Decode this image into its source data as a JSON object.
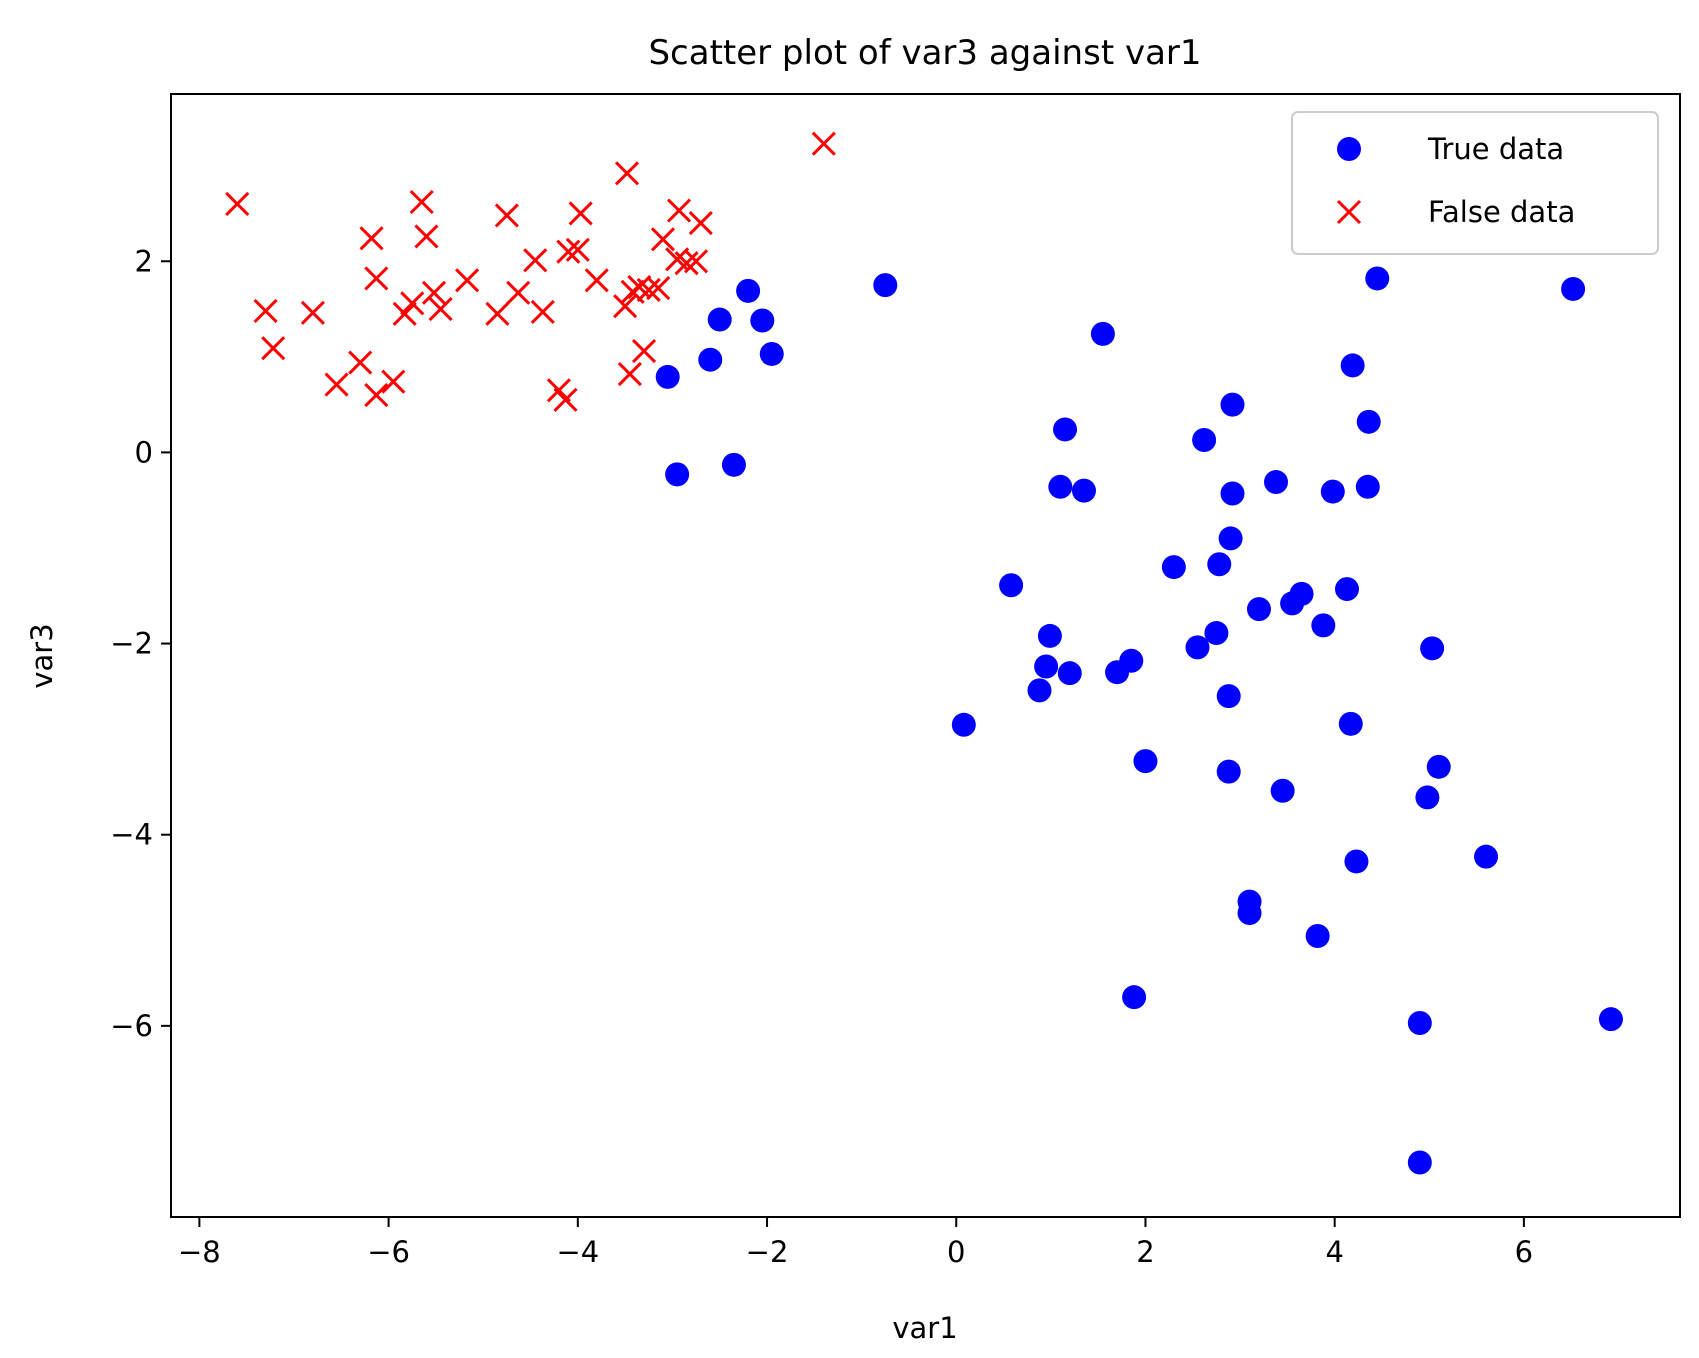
{
  "chart_data": {
    "type": "scatter",
    "title": "Scatter plot of var3 against var1",
    "xlabel": "var1",
    "ylabel": "var3",
    "xlim": [
      -8.3,
      7.65
    ],
    "ylim": [
      -8.0,
      3.75
    ],
    "xticks": [
      -8,
      -6,
      -4,
      -2,
      0,
      2,
      4,
      6
    ],
    "yticks": [
      2,
      0,
      -2,
      -4,
      -6
    ],
    "xtick_labels": [
      "−8",
      "−6",
      "−4",
      "−2",
      "0",
      "2",
      "4",
      "6"
    ],
    "ytick_labels": [
      "2",
      "0",
      "−2",
      "−4",
      "−6"
    ],
    "grid": false,
    "legend_position": "top-right",
    "series": [
      {
        "name": "True data",
        "marker": "circle",
        "color": "#0000ff",
        "points": [
          [
            -3.05,
            0.79
          ],
          [
            -2.95,
            -0.23
          ],
          [
            -2.6,
            0.97
          ],
          [
            -2.5,
            1.39
          ],
          [
            -2.35,
            -0.13
          ],
          [
            -2.2,
            1.69
          ],
          [
            -2.05,
            1.38
          ],
          [
            -1.95,
            1.03
          ],
          [
            -0.75,
            1.75
          ],
          [
            0.08,
            -2.85
          ],
          [
            0.58,
            -1.39
          ],
          [
            0.88,
            -2.49
          ],
          [
            0.95,
            -2.24
          ],
          [
            0.99,
            -1.92
          ],
          [
            1.1,
            -0.36
          ],
          [
            1.15,
            0.24
          ],
          [
            1.2,
            -2.31
          ],
          [
            1.35,
            -0.4
          ],
          [
            1.55,
            1.24
          ],
          [
            1.7,
            -2.3
          ],
          [
            1.85,
            -2.18
          ],
          [
            1.88,
            -5.7
          ],
          [
            2.0,
            -3.23
          ],
          [
            2.3,
            -1.2
          ],
          [
            2.55,
            -2.04
          ],
          [
            2.62,
            0.13
          ],
          [
            2.75,
            -1.89
          ],
          [
            2.78,
            -1.17
          ],
          [
            2.88,
            -3.34
          ],
          [
            2.88,
            -2.55
          ],
          [
            2.9,
            -0.9
          ],
          [
            2.92,
            0.5
          ],
          [
            2.92,
            -0.43
          ],
          [
            3.1,
            -4.82
          ],
          [
            3.1,
            -4.7
          ],
          [
            3.2,
            -1.64
          ],
          [
            3.38,
            -0.31
          ],
          [
            3.45,
            -3.54
          ],
          [
            3.55,
            -1.58
          ],
          [
            3.65,
            -1.48
          ],
          [
            3.82,
            -5.06
          ],
          [
            3.88,
            -1.81
          ],
          [
            3.98,
            -0.41
          ],
          [
            4.13,
            -1.43
          ],
          [
            4.17,
            -2.84
          ],
          [
            4.19,
            0.91
          ],
          [
            4.23,
            -4.28
          ],
          [
            4.35,
            -0.36
          ],
          [
            4.36,
            0.32
          ],
          [
            4.45,
            1.82
          ],
          [
            4.9,
            -5.97
          ],
          [
            4.9,
            -7.43
          ],
          [
            4.98,
            -3.61
          ],
          [
            5.03,
            -2.05
          ],
          [
            5.1,
            -3.29
          ],
          [
            5.6,
            -4.23
          ],
          [
            6.52,
            1.71
          ],
          [
            6.92,
            -5.93
          ]
        ]
      },
      {
        "name": "False data",
        "marker": "x",
        "color": "#ff0000",
        "points": [
          [
            -7.6,
            2.6
          ],
          [
            -7.3,
            1.48
          ],
          [
            -7.22,
            1.09
          ],
          [
            -6.8,
            1.46
          ],
          [
            -6.55,
            0.71
          ],
          [
            -6.3,
            0.94
          ],
          [
            -6.18,
            2.24
          ],
          [
            -6.13,
            1.82
          ],
          [
            -6.13,
            0.6
          ],
          [
            -5.95,
            0.74
          ],
          [
            -5.83,
            1.45
          ],
          [
            -5.75,
            1.56
          ],
          [
            -5.65,
            2.62
          ],
          [
            -5.6,
            2.26
          ],
          [
            -5.52,
            1.67
          ],
          [
            -5.45,
            1.5
          ],
          [
            -5.17,
            1.8
          ],
          [
            -4.85,
            1.45
          ],
          [
            -4.75,
            2.48
          ],
          [
            -4.63,
            1.67
          ],
          [
            -4.45,
            2.01
          ],
          [
            -4.37,
            1.47
          ],
          [
            -4.2,
            0.65
          ],
          [
            -4.13,
            0.55
          ],
          [
            -4.1,
            2.1
          ],
          [
            -4.0,
            2.12
          ],
          [
            -3.97,
            2.5
          ],
          [
            -3.8,
            1.8
          ],
          [
            -3.5,
            1.53
          ],
          [
            -3.48,
            2.92
          ],
          [
            -3.45,
            0.82
          ],
          [
            -3.42,
            1.68
          ],
          [
            -3.35,
            1.73
          ],
          [
            -3.3,
            1.06
          ],
          [
            -3.25,
            1.7
          ],
          [
            -3.15,
            1.72
          ],
          [
            -3.1,
            2.23
          ],
          [
            -2.95,
            2.02
          ],
          [
            -2.93,
            2.53
          ],
          [
            -2.85,
            1.98
          ],
          [
            -2.75,
            2.0
          ],
          [
            -2.7,
            2.4
          ],
          [
            -1.4,
            3.23
          ]
        ]
      }
    ]
  }
}
